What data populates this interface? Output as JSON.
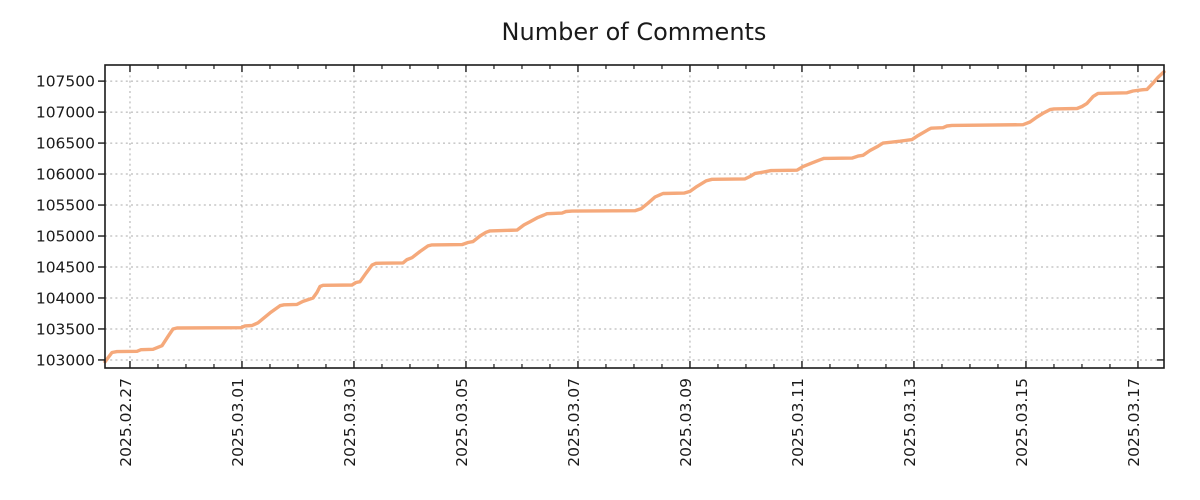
{
  "chart_data": {
    "type": "line",
    "title": "Number of Comments",
    "xlabel": "",
    "ylabel": "",
    "legend": "none",
    "grid": {
      "show": true,
      "style": "dashed",
      "color": "#ababab"
    },
    "x_axis": {
      "unit": "date",
      "range_days": [
        0,
        18.911
      ],
      "tick_labels": [
        "2025.02.27",
        "2025.03.01",
        "2025.03.03",
        "2025.03.05",
        "2025.03.07",
        "2025.03.09",
        "2025.03.11",
        "2025.03.13",
        "2025.03.15",
        "2025.03.17"
      ],
      "tick_positions_days": [
        0.446,
        2.446,
        4.446,
        6.446,
        8.446,
        10.446,
        12.446,
        14.446,
        16.446,
        18.446
      ],
      "minor_tick_step_days": 0.5
    },
    "y_axis": {
      "range": [
        102870,
        107760
      ],
      "tick_values": [
        103000,
        103500,
        104000,
        104500,
        105000,
        105500,
        106000,
        106500,
        107000,
        107500
      ]
    },
    "series": [
      {
        "name": "Number of Comments",
        "color": "#f5a97b",
        "points": [
          [
            0,
            102970
          ],
          [
            0.125,
            103120
          ],
          [
            0.214,
            103135
          ],
          [
            0.571,
            103140
          ],
          [
            0.643,
            103165
          ],
          [
            0.857,
            103172
          ],
          [
            1.018,
            103230
          ],
          [
            1.125,
            103380
          ],
          [
            1.214,
            103500
          ],
          [
            1.286,
            103515
          ],
          [
            2.429,
            103520
          ],
          [
            2.5,
            103550
          ],
          [
            2.625,
            103556
          ],
          [
            2.732,
            103600
          ],
          [
            2.946,
            103760
          ],
          [
            3.125,
            103875
          ],
          [
            3.196,
            103890
          ],
          [
            3.429,
            103896
          ],
          [
            3.536,
            103945
          ],
          [
            3.714,
            104000
          ],
          [
            3.786,
            104090
          ],
          [
            3.839,
            104185
          ],
          [
            3.893,
            104205
          ],
          [
            4.411,
            104210
          ],
          [
            4.482,
            104250
          ],
          [
            4.554,
            104262
          ],
          [
            4.661,
            104400
          ],
          [
            4.768,
            104530
          ],
          [
            4.839,
            104560
          ],
          [
            5.321,
            104566
          ],
          [
            5.393,
            104620
          ],
          [
            5.482,
            104650
          ],
          [
            5.625,
            104750
          ],
          [
            5.768,
            104840
          ],
          [
            5.839,
            104856
          ],
          [
            6.375,
            104862
          ],
          [
            6.482,
            104895
          ],
          [
            6.571,
            104910
          ],
          [
            6.696,
            105000
          ],
          [
            6.804,
            105060
          ],
          [
            6.875,
            105082
          ],
          [
            7.357,
            105096
          ],
          [
            7.482,
            105180
          ],
          [
            7.589,
            105230
          ],
          [
            7.732,
            105300
          ],
          [
            7.839,
            105340
          ],
          [
            7.893,
            105360
          ],
          [
            8.161,
            105370
          ],
          [
            8.232,
            105395
          ],
          [
            8.339,
            105402
          ],
          [
            9.464,
            105408
          ],
          [
            9.571,
            105440
          ],
          [
            9.696,
            105530
          ],
          [
            9.821,
            105630
          ],
          [
            9.911,
            105665
          ],
          [
            9.964,
            105686
          ],
          [
            10.339,
            105692
          ],
          [
            10.446,
            105720
          ],
          [
            10.571,
            105800
          ],
          [
            10.732,
            105890
          ],
          [
            10.839,
            105916
          ],
          [
            11.429,
            105922
          ],
          [
            11.518,
            105960
          ],
          [
            11.607,
            106010
          ],
          [
            11.696,
            106022
          ],
          [
            11.804,
            106040
          ],
          [
            11.893,
            106056
          ],
          [
            12.357,
            106062
          ],
          [
            12.464,
            106120
          ],
          [
            12.625,
            106180
          ],
          [
            12.768,
            106230
          ],
          [
            12.839,
            106252
          ],
          [
            13.339,
            106258
          ],
          [
            13.446,
            106290
          ],
          [
            13.536,
            106302
          ],
          [
            13.661,
            106380
          ],
          [
            13.804,
            106450
          ],
          [
            13.893,
            106500
          ],
          [
            14.196,
            106530
          ],
          [
            14.286,
            106542
          ],
          [
            14.411,
            106556
          ],
          [
            14.518,
            106620
          ],
          [
            14.696,
            106715
          ],
          [
            14.75,
            106740
          ],
          [
            14.964,
            106748
          ],
          [
            15.036,
            106775
          ],
          [
            15.125,
            106786
          ],
          [
            16.393,
            106796
          ],
          [
            16.518,
            106840
          ],
          [
            16.643,
            106920
          ],
          [
            16.768,
            106990
          ],
          [
            16.875,
            107040
          ],
          [
            16.946,
            107052
          ],
          [
            17.357,
            107058
          ],
          [
            17.446,
            107090
          ],
          [
            17.536,
            107140
          ],
          [
            17.643,
            107250
          ],
          [
            17.732,
            107302
          ],
          [
            18.25,
            107312
          ],
          [
            18.357,
            107340
          ],
          [
            18.518,
            107360
          ],
          [
            18.607,
            107366
          ],
          [
            18.696,
            107450
          ],
          [
            18.804,
            107560
          ],
          [
            18.911,
            107650
          ]
        ]
      }
    ]
  },
  "colors": {
    "line": "#f5a97b",
    "grid": "#ababab",
    "axis": "#1a1a1a",
    "text": "#1a1a1a",
    "background": "#ffffff"
  }
}
